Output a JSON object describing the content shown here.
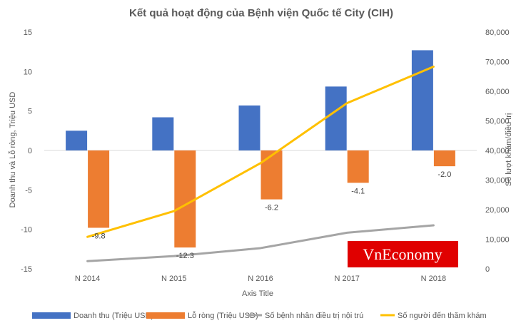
{
  "chart_data": {
    "type": "bar+line",
    "title": "Kết quả hoạt động của Bệnh viện Quốc tế City (CIH)",
    "categories": [
      "N 2014",
      "N 2015",
      "N 2016",
      "N 2017",
      "N 2018"
    ],
    "xlabel": "Axis Title",
    "ylabel": "Doanh thu và Lỗ ròng, Triệu USD",
    "y2label": "Số lượt khám/điều trị",
    "ylim": [
      -15,
      15
    ],
    "y2lim": [
      0,
      80000
    ],
    "y_ticks": [
      "15",
      "10",
      "5",
      "0",
      "-5",
      "-10",
      "-15"
    ],
    "y2_ticks": [
      "80,000",
      "70,000",
      "60,000",
      "50,000",
      "40,000",
      "30,000",
      "20,000",
      "10,000",
      "0"
    ],
    "series": [
      {
        "name": "Doanh thu (Triệu USD)",
        "kind": "bar",
        "axis": "left",
        "color": "#4472C4",
        "values": [
          2.5,
          4.2,
          5.7,
          8.1,
          12.7
        ]
      },
      {
        "name": "Lỗ ròng (Triệu USD)",
        "kind": "bar",
        "axis": "left",
        "color": "#ED7D31",
        "values": [
          -9.8,
          -12.3,
          -6.2,
          -4.1,
          -2.0
        ],
        "labels": [
          "-9.8",
          "-12.3",
          "-6.2",
          "-4.1",
          "-2.0"
        ]
      },
      {
        "name": "Số bệnh nhân điều trị nội trú",
        "kind": "line",
        "axis": "right",
        "color": "#A5A5A5",
        "values": [
          2600,
          4300,
          7000,
          12200,
          14700
        ]
      },
      {
        "name": "Số người đến thăm khám",
        "kind": "line",
        "axis": "right",
        "color": "#FFC000",
        "values": [
          10800,
          19500,
          35700,
          56000,
          68300
        ]
      }
    ],
    "legend_position": "bottom"
  },
  "watermark": {
    "text": "VnEconomy",
    "background": "#E00000"
  }
}
